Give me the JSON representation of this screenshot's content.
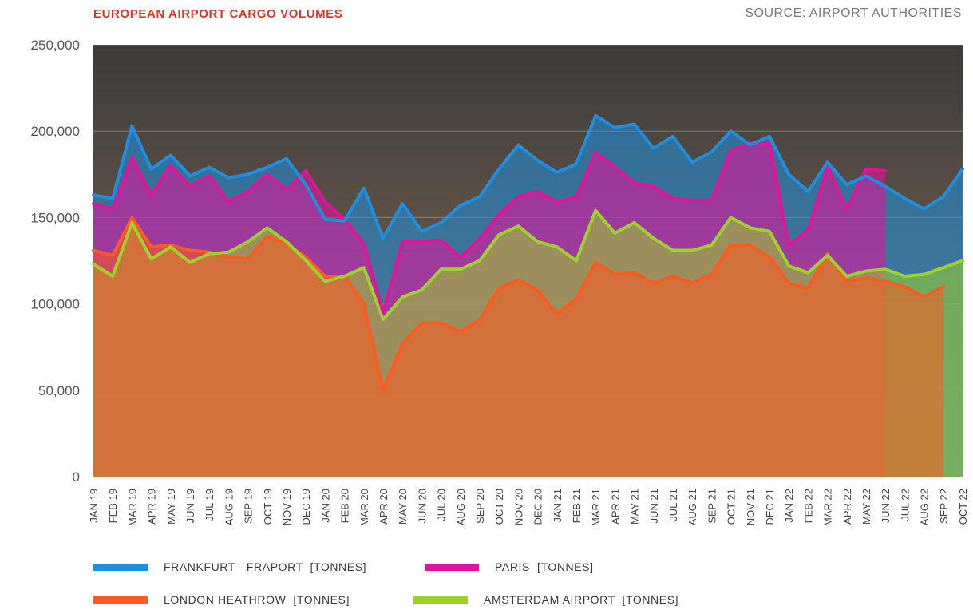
{
  "header": {
    "title": "EUROPEAN AIRPORT CARGO VOLUMES",
    "source": "SOURCE: AIRPORT AUTHORITIES"
  },
  "colors": {
    "title": "#d63a2a",
    "plot_top": "#3c3c3c",
    "plot_bottom": "#8a6f55",
    "frankfurt": "#1e8fe0",
    "paris": "#e0149b",
    "heathrow": "#ff5a1f",
    "amsterdam": "#9bd32a"
  },
  "legend": [
    {
      "key": "frankfurt",
      "label": "FRANKFURT - FRAPORT  [TONNES]"
    },
    {
      "key": "paris",
      "label": "PARIS  [TONNES]"
    },
    {
      "key": "heathrow",
      "label": "LONDON HEATHROW  [TONNES]"
    },
    {
      "key": "amsterdam",
      "label": "AMSTERDAM AIRPORT  [TONNES]"
    }
  ],
  "chart_data": {
    "type": "area",
    "title": "EUROPEAN AIRPORT CARGO VOLUMES",
    "ylim": [
      0,
      250000
    ],
    "yticks": [
      0,
      50000,
      100000,
      150000,
      200000,
      250000
    ],
    "ytick_labels": [
      "0",
      "50,000",
      "100,000",
      "150,000",
      "200,000",
      "250,000"
    ],
    "grid": true,
    "legend_position": "bottom",
    "categories": [
      "JAN 19",
      "FEB 19",
      "MAR 19",
      "APR 19",
      "MAY 19",
      "JUN 19",
      "JUL 19",
      "AUG 19",
      "SEP 19",
      "OCT 19",
      "NOV 19",
      "DEC 19",
      "JAN 20",
      "FEB 20",
      "MAR 20",
      "APR 20",
      "MAY 20",
      "JUN 20",
      "JUL 20",
      "AUG 20",
      "SEP 20",
      "OCT 20",
      "NOV 20",
      "DEC 20",
      "JAN 21",
      "FEB 21",
      "MAR 21",
      "APR 21",
      "MAY 21",
      "JUN 21",
      "JUL 21",
      "AUG 21",
      "SEP 21",
      "OCT 21",
      "NOV 21",
      "DEC 21",
      "JAN 22",
      "FEB 22",
      "MAR 22",
      "APR 22",
      "MAY 22",
      "JUN 22",
      "JUL 22",
      "AUG 22",
      "SEP 22",
      "OCT 22"
    ],
    "series": [
      {
        "key": "frankfurt",
        "name": "FRANKFURT - FRAPORT  [TONNES]",
        "color": "#1e8fe0",
        "values": [
          163000,
          161000,
          203000,
          178000,
          186000,
          174000,
          179000,
          173000,
          175000,
          179000,
          184000,
          169000,
          149000,
          148000,
          167000,
          138000,
          158000,
          142000,
          147000,
          157000,
          162000,
          178000,
          192000,
          183000,
          176000,
          181000,
          209000,
          202000,
          204000,
          190000,
          197000,
          182000,
          188000,
          200000,
          192000,
          197000,
          175000,
          165000,
          182000,
          169000,
          174000,
          168000,
          161000,
          155000,
          162000,
          178000
        ]
      },
      {
        "key": "paris",
        "name": "PARIS  [TONNES]",
        "color": "#e0149b",
        "values": [
          158000,
          155000,
          185000,
          163000,
          180000,
          168000,
          174000,
          159000,
          165000,
          175000,
          166000,
          177000,
          159000,
          149000,
          135000,
          95000,
          136000,
          136000,
          137000,
          127000,
          138000,
          152000,
          162000,
          165000,
          159000,
          162000,
          188000,
          179000,
          170000,
          168000,
          161000,
          160000,
          160000,
          189000,
          193000,
          193000,
          134000,
          143000,
          179000,
          155000,
          178000,
          177000,
          null,
          null,
          null,
          null
        ]
      },
      {
        "key": "heathrow",
        "name": "LONDON HEATHROW  [TONNES]",
        "color": "#ff5a1f",
        "values": [
          131000,
          128000,
          150000,
          133000,
          134000,
          131000,
          130000,
          127000,
          126000,
          139000,
          135000,
          127000,
          116000,
          116000,
          100000,
          50000,
          77000,
          89000,
          89000,
          84000,
          91000,
          109000,
          114000,
          108000,
          94000,
          103000,
          124000,
          117000,
          118000,
          112000,
          116000,
          112000,
          117000,
          134000,
          134000,
          127000,
          112000,
          109000,
          129000,
          113000,
          115000,
          113000,
          110000,
          104000,
          110000,
          null
        ]
      },
      {
        "key": "amsterdam",
        "name": "AMSTERDAM AIRPORT  [TONNES]",
        "color": "#9bd32a",
        "values": [
          123000,
          116000,
          147000,
          126000,
          133000,
          124000,
          129000,
          130000,
          136000,
          144000,
          136000,
          125000,
          113000,
          116000,
          121000,
          91000,
          104000,
          108000,
          120000,
          120000,
          125000,
          140000,
          145000,
          136000,
          133000,
          125000,
          154000,
          141000,
          147000,
          138000,
          131000,
          131000,
          134000,
          150000,
          144000,
          142000,
          122000,
          118000,
          128000,
          116000,
          119000,
          120000,
          116000,
          117000,
          121000,
          125000
        ]
      }
    ]
  }
}
